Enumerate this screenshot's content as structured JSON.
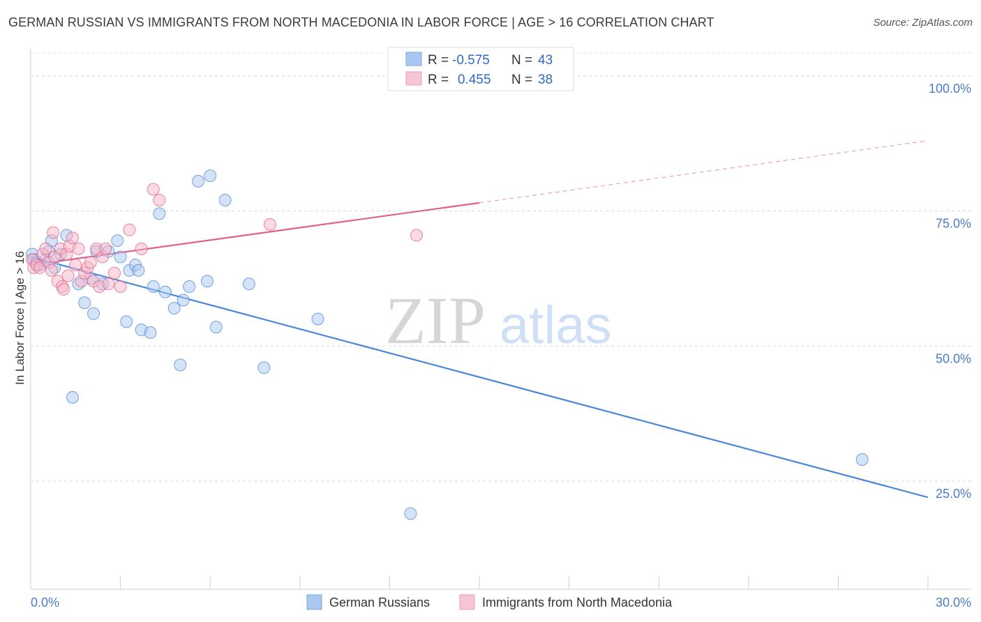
{
  "header": {
    "title": "GERMAN RUSSIAN VS IMMIGRANTS FROM NORTH MACEDONIA IN LABOR FORCE | AGE > 16 CORRELATION CHART",
    "source": "Source: ZipAtlas.com"
  },
  "watermark": {
    "zip": "ZIP",
    "atlas": "atlas"
  },
  "legend_top": {
    "rows": [
      {
        "r_label": "R =",
        "r_value": "-0.575",
        "n_label": "N =",
        "n_value": "43",
        "color": "#a9c8f0"
      },
      {
        "r_label": "R =",
        "r_value": "0.455",
        "n_label": "N =",
        "n_value": "38",
        "color": "#f7b6c8"
      }
    ]
  },
  "legend_bottom": {
    "items": [
      {
        "label": "German Russians",
        "color": "#a9c8f0"
      },
      {
        "label": "Immigrants from North Macedonia",
        "color": "#f7b6c8"
      }
    ]
  },
  "chart_data": {
    "type": "scatter",
    "title": "GERMAN RUSSIAN VS IMMIGRANTS FROM NORTH MACEDONIA IN LABOR FORCE | AGE > 16 CORRELATION CHART",
    "ylabel": "In Labor Force | Age > 16",
    "xlabel": "",
    "xlim": [
      0,
      30
    ],
    "ylim": [
      5,
      105
    ],
    "x_tick_labels": [
      "0.0%",
      "30.0%"
    ],
    "y_ticks": [
      25,
      50,
      75,
      100
    ],
    "y_tick_labels": [
      "25.0%",
      "50.0%",
      "75.0%",
      "100.0%"
    ],
    "grid": true,
    "legend_position": "top-center",
    "series": [
      {
        "name": "German Russians",
        "color": "#4a86d8",
        "fill": "#a9c8f0",
        "points": [
          [
            0.05,
            67.0
          ],
          [
            0.1,
            66.0
          ],
          [
            0.2,
            65.5
          ],
          [
            0.3,
            65.0
          ],
          [
            0.5,
            66.0
          ],
          [
            0.6,
            67.5
          ],
          [
            0.7,
            69.5
          ],
          [
            0.8,
            64.5
          ],
          [
            1.0,
            67.0
          ],
          [
            1.2,
            70.5
          ],
          [
            1.4,
            40.5
          ],
          [
            1.6,
            61.5
          ],
          [
            1.8,
            58.0
          ],
          [
            2.0,
            62.5
          ],
          [
            2.1,
            56.0
          ],
          [
            2.2,
            67.5
          ],
          [
            2.4,
            61.5
          ],
          [
            2.6,
            67.5
          ],
          [
            2.9,
            69.5
          ],
          [
            3.0,
            66.5
          ],
          [
            3.2,
            54.5
          ],
          [
            3.3,
            64.0
          ],
          [
            3.5,
            65.0
          ],
          [
            3.6,
            64.0
          ],
          [
            3.7,
            53.0
          ],
          [
            4.0,
            52.5
          ],
          [
            4.1,
            61.0
          ],
          [
            4.3,
            74.5
          ],
          [
            4.5,
            60.0
          ],
          [
            4.8,
            57.0
          ],
          [
            5.0,
            46.5
          ],
          [
            5.1,
            58.5
          ],
          [
            5.3,
            61.0
          ],
          [
            5.6,
            80.5
          ],
          [
            5.9,
            62.0
          ],
          [
            6.0,
            81.5
          ],
          [
            6.2,
            53.5
          ],
          [
            6.5,
            77.0
          ],
          [
            7.3,
            61.5
          ],
          [
            7.8,
            46.0
          ],
          [
            9.6,
            55.0
          ],
          [
            12.7,
            19.0
          ],
          [
            27.8,
            29.0
          ]
        ],
        "trend": {
          "x": [
            0,
            30
          ],
          "y": [
            66.5,
            22.0
          ],
          "dashed": false
        }
      },
      {
        "name": "Immigrants from North Macedonia",
        "color": "#e0608a",
        "fill": "#f7b6c8",
        "points": [
          [
            0.05,
            66.0
          ],
          [
            0.1,
            64.5
          ],
          [
            0.2,
            65.0
          ],
          [
            0.3,
            64.5
          ],
          [
            0.4,
            67.0
          ],
          [
            0.5,
            68.0
          ],
          [
            0.6,
            65.5
          ],
          [
            0.7,
            64.0
          ],
          [
            0.75,
            71.0
          ],
          [
            0.8,
            66.5
          ],
          [
            0.9,
            62.0
          ],
          [
            1.0,
            68.0
          ],
          [
            1.05,
            61.0
          ],
          [
            1.1,
            60.5
          ],
          [
            1.2,
            67.0
          ],
          [
            1.25,
            63.0
          ],
          [
            1.3,
            68.5
          ],
          [
            1.4,
            70.0
          ],
          [
            1.5,
            65.0
          ],
          [
            1.6,
            68.0
          ],
          [
            1.7,
            62.0
          ],
          [
            1.8,
            63.5
          ],
          [
            1.9,
            64.5
          ],
          [
            2.0,
            65.5
          ],
          [
            2.1,
            62.0
          ],
          [
            2.2,
            68.0
          ],
          [
            2.3,
            61.0
          ],
          [
            2.4,
            66.5
          ],
          [
            2.5,
            68.0
          ],
          [
            2.6,
            61.5
          ],
          [
            2.8,
            63.5
          ],
          [
            3.0,
            61.0
          ],
          [
            3.3,
            71.5
          ],
          [
            3.7,
            68.0
          ],
          [
            4.1,
            79.0
          ],
          [
            4.3,
            77.0
          ],
          [
            8.0,
            72.5
          ],
          [
            12.9,
            70.5
          ]
        ],
        "trend": {
          "x": [
            0,
            15
          ],
          "y": [
            65.0,
            76.5
          ],
          "dashed": false
        },
        "trend_extension": {
          "x": [
            15,
            30
          ],
          "y": [
            76.5,
            88.0
          ],
          "dashed": true
        }
      }
    ]
  }
}
